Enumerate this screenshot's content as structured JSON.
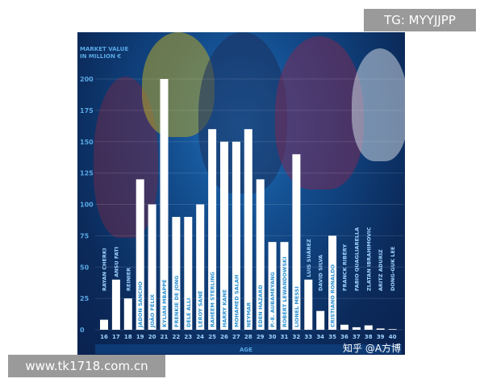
{
  "watermarks": {
    "top_right": "TG: MYYJJPP",
    "bottom_left": "www.tk1718.com.cn",
    "credit": "知乎 @A方博"
  },
  "chart_data": {
    "type": "bar",
    "title": "",
    "ylabel": "MARKET VALUE IN MILLION €",
    "ylabel_lines": [
      "MARKET VALUE",
      "IN MILLION €"
    ],
    "xlabel": "AGE",
    "ylim": [
      0,
      200
    ],
    "yticks": [
      0,
      25,
      50,
      75,
      100,
      125,
      150,
      175,
      200
    ],
    "grid": true,
    "categories": [
      "16",
      "17",
      "18",
      "19",
      "20",
      "21",
      "22",
      "23",
      "24",
      "25",
      "26",
      "27",
      "28",
      "29",
      "30",
      "31",
      "32",
      "33",
      "34",
      "35",
      "36",
      "37",
      "38",
      "39",
      "40"
    ],
    "players": [
      "RAYAN CHERKI",
      "ANSU FATI",
      "REINIER",
      "JADON SANCHO",
      "JOÃO FÉLIX",
      "KYLIAN MBAPPÉ",
      "FRENKIE DE JONG",
      "DELE ALLI",
      "LEROY SANÉ",
      "RAHEEM STERLING",
      "HARRY KANE",
      "MOHAMED SALAH",
      "NEYMAR",
      "EDEN HAZARD",
      "P.-E. AUBAMEYANG",
      "ROBERT LEWANDOWSKI",
      "LIONEL MESSI",
      "LUIS SUÁREZ",
      "DAVID SILVA",
      "CRISTIANO RONALDO",
      "FRANCK RIBÉRY",
      "FABIO QUAGLIARELLA",
      "ZLATAN IBRAHIMOVIC",
      "ARITZ ADURIZ",
      "DONG-GUK LEE"
    ],
    "values": [
      8,
      40,
      25,
      120,
      100,
      200,
      90,
      90,
      100,
      160,
      150,
      150,
      160,
      120,
      70,
      70,
      140,
      40,
      15,
      75,
      4,
      2,
      3.5,
      1,
      0.5
    ],
    "colors": {
      "bar": "#ffffff",
      "label": "#9fd3ff",
      "axis_text": "#5aa9e6",
      "background": "#0b2a5a"
    }
  }
}
